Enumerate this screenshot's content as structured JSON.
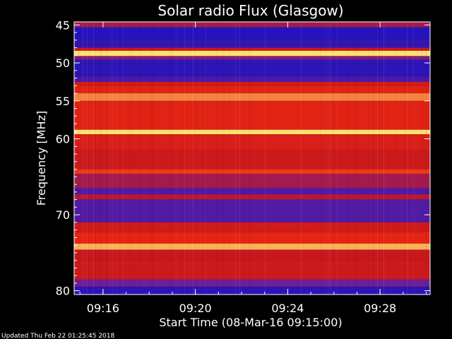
{
  "colors": {
    "background": "#000000",
    "text": "#ffffff",
    "frame": "#ffffff",
    "low_flux": "#0a10c8",
    "mid_flux": "#8a1a8c",
    "high_flux": "#d61812",
    "peak_flux": "#ffe070"
  },
  "chart_data": {
    "type": "heatmap",
    "title": "Solar radio Flux (Glasgow)",
    "xlabel": "Start Time (08-Mar-16 09:15:00)",
    "ylabel": "Frequency [MHz]",
    "xlim": [
      "09:14:45",
      "09:30:10"
    ],
    "ylim": [
      80.5,
      44.6
    ],
    "x_ticks": [
      "09:16",
      "09:20",
      "09:24",
      "09:28"
    ],
    "x_tick_minutes": [
      16,
      20,
      24,
      28
    ],
    "y_ticks": [
      45,
      50,
      55,
      60,
      70,
      80
    ],
    "grid": false,
    "colorscale": [
      "blue",
      "purple",
      "red",
      "yellow"
    ],
    "frequency_bands_mhz": [
      {
        "from": 44.6,
        "to": 45.3,
        "level": 0.45
      },
      {
        "from": 45.3,
        "to": 46.8,
        "level": 0.08
      },
      {
        "from": 46.8,
        "to": 48.0,
        "level": 0.12
      },
      {
        "from": 48.0,
        "to": 48.4,
        "level": 0.55
      },
      {
        "from": 48.4,
        "to": 49.1,
        "level": 1.0
      },
      {
        "from": 49.1,
        "to": 49.6,
        "level": 0.35
      },
      {
        "from": 49.6,
        "to": 51.8,
        "level": 0.1
      },
      {
        "from": 51.8,
        "to": 52.5,
        "level": 0.2
      },
      {
        "from": 52.5,
        "to": 53.0,
        "level": 0.62
      },
      {
        "from": 53.0,
        "to": 54.0,
        "level": 0.72
      },
      {
        "from": 54.0,
        "to": 55.0,
        "level": 0.9
      },
      {
        "from": 55.0,
        "to": 58.8,
        "level": 0.72
      },
      {
        "from": 58.8,
        "to": 59.4,
        "level": 1.0
      },
      {
        "from": 59.4,
        "to": 61.5,
        "level": 0.66
      },
      {
        "from": 61.5,
        "to": 64.0,
        "level": 0.58
      },
      {
        "from": 64.0,
        "to": 64.6,
        "level": 0.82
      },
      {
        "from": 64.6,
        "to": 66.5,
        "level": 0.45
      },
      {
        "from": 66.5,
        "to": 67.3,
        "level": 0.2
      },
      {
        "from": 67.3,
        "to": 68.0,
        "level": 0.5
      },
      {
        "from": 68.0,
        "to": 71.0,
        "level": 0.22
      },
      {
        "from": 71.0,
        "to": 72.3,
        "level": 0.6
      },
      {
        "from": 72.3,
        "to": 73.8,
        "level": 0.75
      },
      {
        "from": 73.8,
        "to": 74.6,
        "level": 0.95
      },
      {
        "from": 74.6,
        "to": 76.0,
        "level": 0.55
      },
      {
        "from": 76.0,
        "to": 78.5,
        "level": 0.58
      },
      {
        "from": 78.5,
        "to": 79.5,
        "level": 0.3
      },
      {
        "from": 79.5,
        "to": 80.5,
        "level": 0.1
      }
    ]
  },
  "footer": {
    "updated": "Updated Thu Feb 22 01:25:45 2018"
  }
}
